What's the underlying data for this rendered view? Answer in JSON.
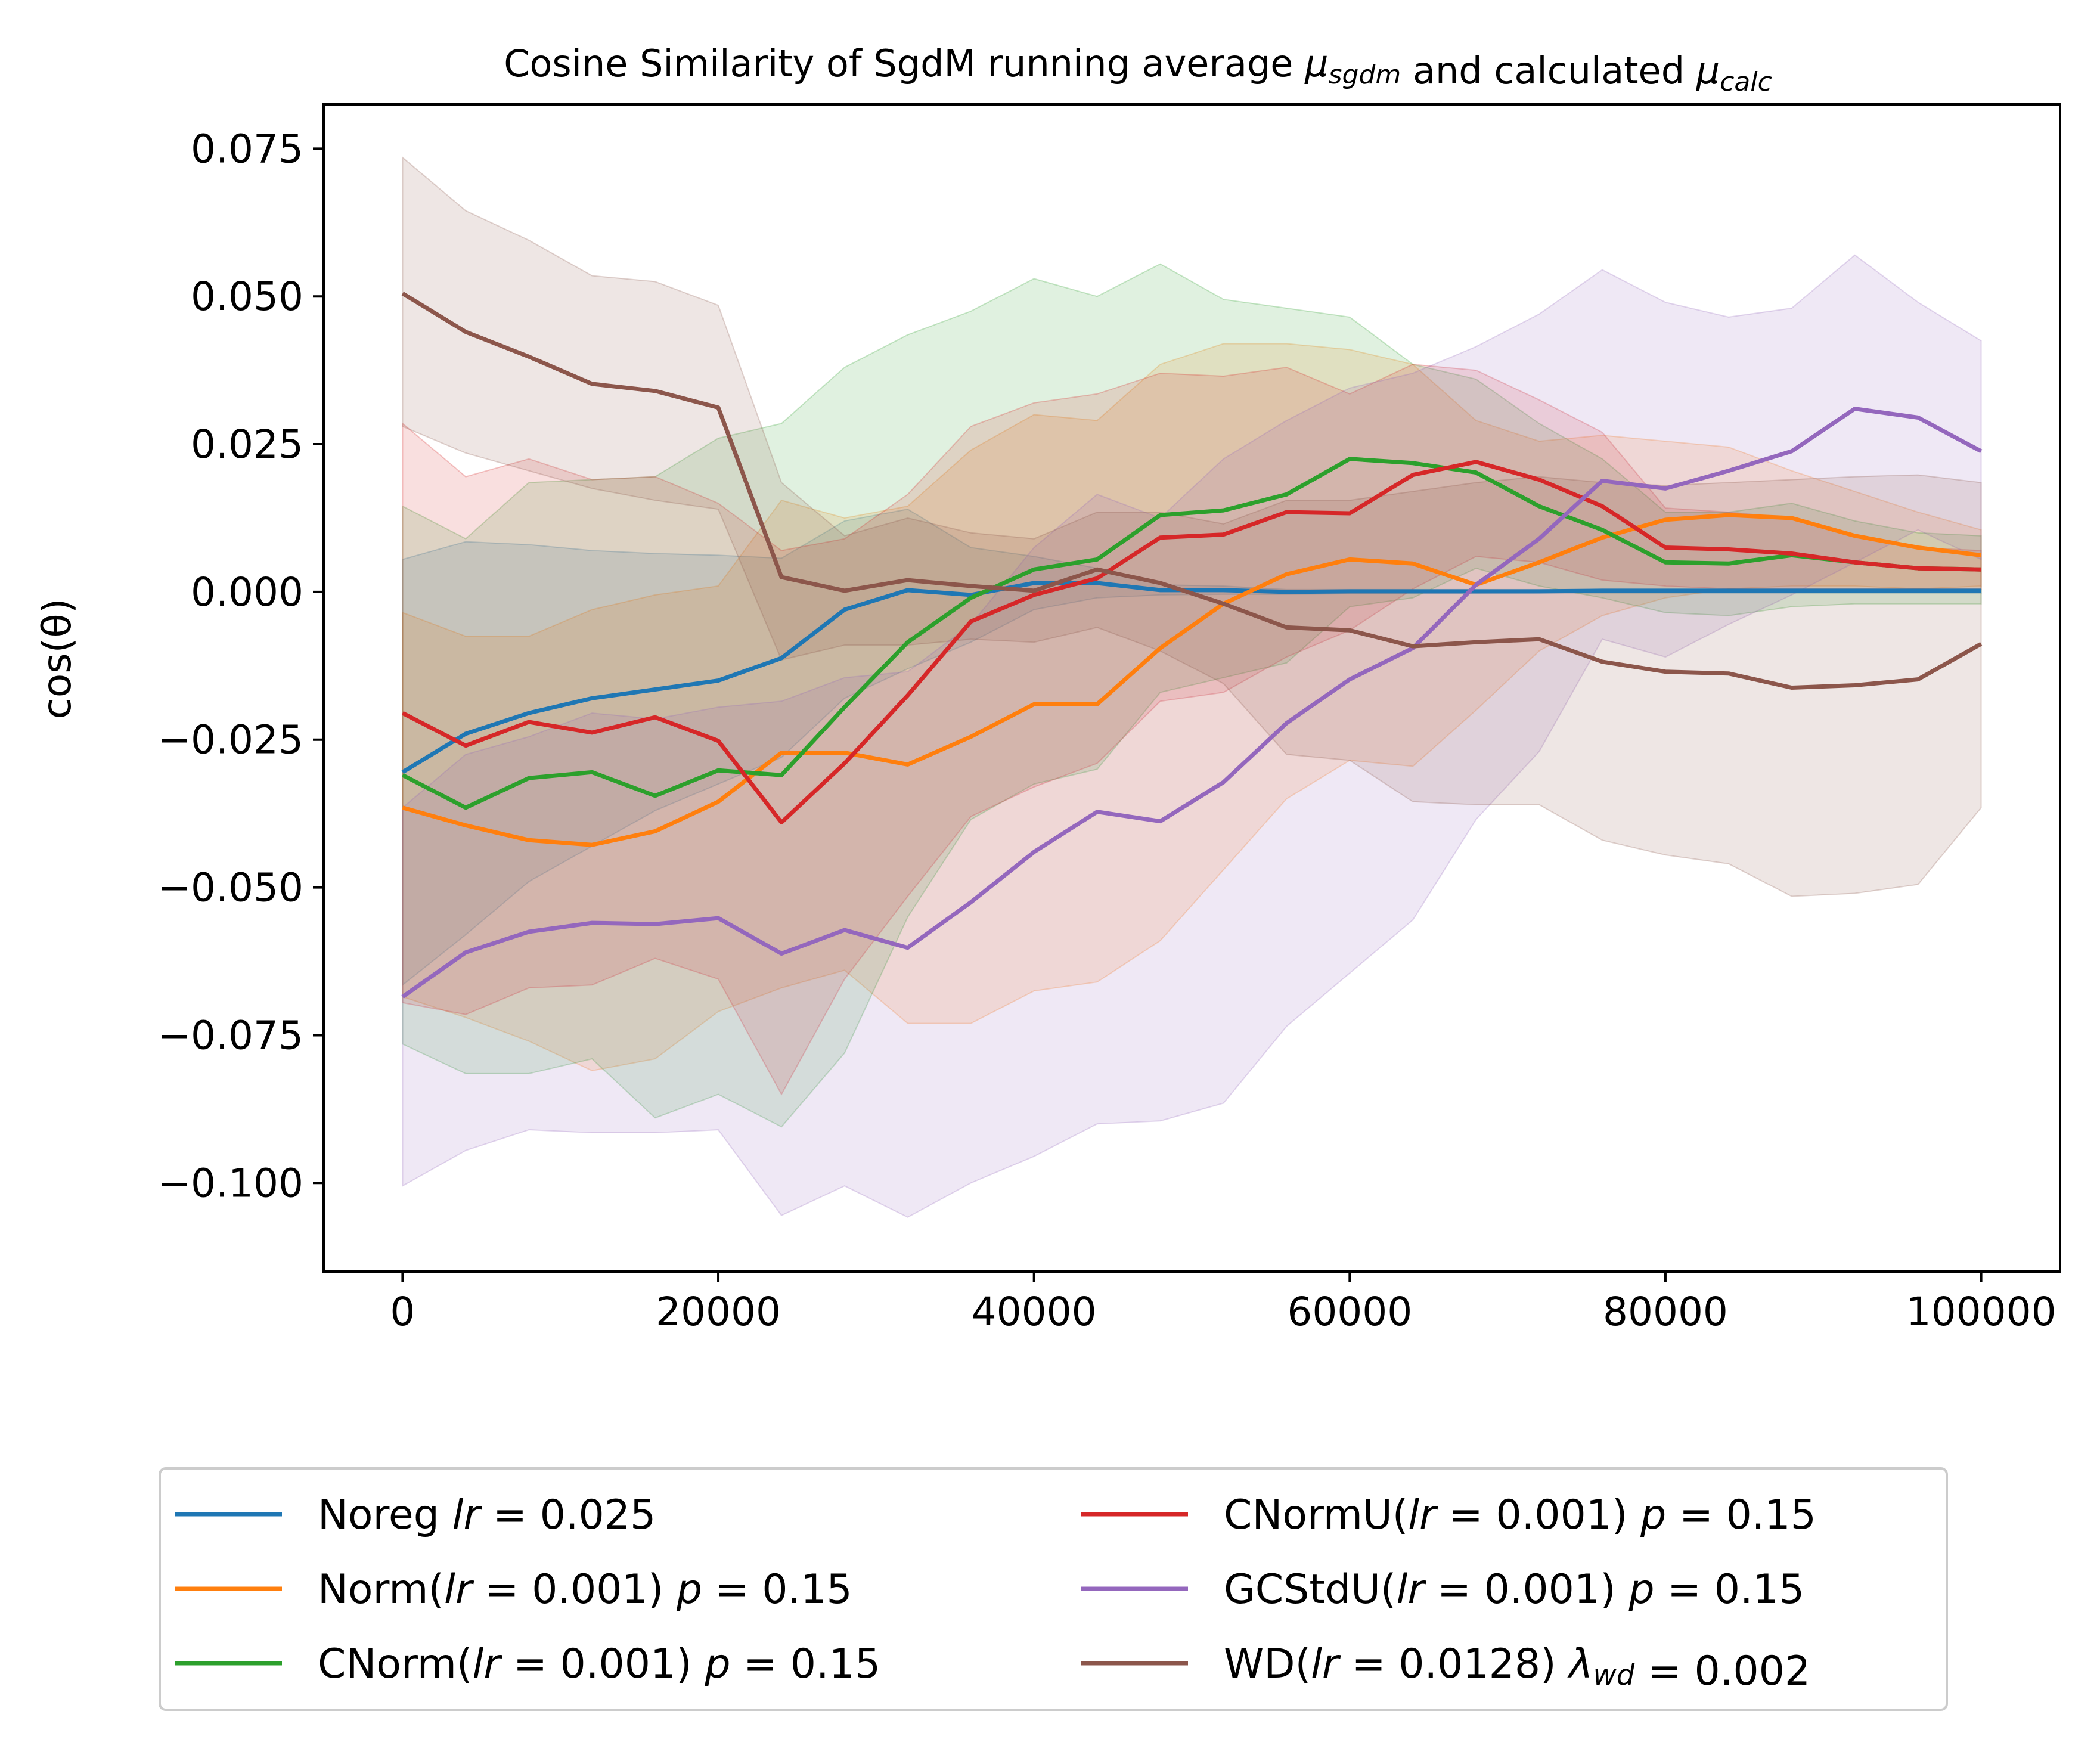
{
  "chart_data": {
    "type": "line",
    "title": "Cosine Similarity of SgdM running average μsgdm and calculated μcalc",
    "title_parts": [
      {
        "text": "Cosine Similarity of SgdM running average ",
        "style": "normal"
      },
      {
        "text": "μ",
        "style": "italic"
      },
      {
        "text": "sgdm",
        "style": "sub"
      },
      {
        "text": " and calculated ",
        "style": "normal"
      },
      {
        "text": "μ",
        "style": "italic"
      },
      {
        "text": "calc",
        "style": "sub"
      }
    ],
    "xlabel": "",
    "ylabel": "cos(θ)",
    "xlim": [
      -5000,
      105000
    ],
    "ylim": [
      -0.115,
      0.0825
    ],
    "xticks": [
      0,
      20000,
      40000,
      60000,
      80000,
      100000
    ],
    "xtick_labels": [
      "0",
      "20000",
      "40000",
      "60000",
      "80000",
      "100000"
    ],
    "yticks": [
      0.075,
      0.05,
      0.025,
      0.0,
      -0.025,
      -0.05,
      -0.075,
      -0.1
    ],
    "ytick_labels": [
      "0.075",
      "0.050",
      "0.025",
      "0.000",
      "−0.025",
      "−0.050",
      "−0.075",
      "−0.100"
    ],
    "grid": false,
    "legend_position": "below",
    "legend_columns": 2,
    "x": [
      0,
      4000,
      8000,
      12000,
      16000,
      20000,
      24000,
      28000,
      32000,
      36000,
      40000,
      44000,
      48000,
      52000,
      56000,
      60000,
      64000,
      68000,
      72000,
      76000,
      80000,
      84000,
      88000,
      92000,
      96000,
      100000
    ],
    "series": [
      {
        "name": "Noreg lr = 0.025",
        "label_parts": [
          {
            "text": "Noreg ",
            "style": "normal"
          },
          {
            "text": "lr",
            "style": "italic"
          },
          {
            "text": " = 0.025",
            "style": "normal"
          }
        ],
        "color": "#1f77b4",
        "values": [
          -0.0305,
          -0.024,
          -0.0205,
          -0.018,
          -0.0165,
          -0.015,
          -0.0112,
          -0.003,
          0.0003,
          -0.0005,
          0.0015,
          0.0015,
          0.0003,
          0.0003,
          0.0,
          0.0001,
          0.0001,
          0.0001,
          0.0001,
          0.0002,
          0.0002,
          0.0002,
          0.0002,
          0.0002,
          0.0002,
          0.0002
        ],
        "lower": [
          -0.0665,
          -0.058,
          -0.049,
          -0.043,
          -0.037,
          -0.0325,
          -0.028,
          -0.018,
          -0.013,
          -0.0085,
          -0.003,
          -0.001,
          -0.0005,
          -0.0004,
          -0.0004,
          -0.0003,
          -0.0003,
          -0.0003,
          -0.0002,
          -0.0002,
          -0.0002,
          -0.0002,
          -0.0002,
          -0.0002,
          -0.0002,
          -0.0002
        ],
        "upper": [
          0.0055,
          0.0085,
          0.008,
          0.007,
          0.0065,
          0.0062,
          0.0057,
          0.012,
          0.014,
          0.0075,
          0.006,
          0.004,
          0.0012,
          0.001,
          0.0004,
          0.0004,
          0.0004,
          0.0004,
          0.0004,
          0.0004,
          0.0004,
          0.0004,
          0.0004,
          0.0004,
          0.0004,
          0.0004
        ]
      },
      {
        "name": "Norm(lr = 0.001) p = 0.15",
        "label_parts": [
          {
            "text": "Norm(",
            "style": "normal"
          },
          {
            "text": "lr",
            "style": "italic"
          },
          {
            "text": " = 0.001) ",
            "style": "normal"
          },
          {
            "text": "p",
            "style": "italic"
          },
          {
            "text": " = 0.15",
            "style": "normal"
          }
        ],
        "color": "#ff7f0e",
        "values": [
          -0.0365,
          -0.0395,
          -0.042,
          -0.0428,
          -0.0405,
          -0.0355,
          -0.0272,
          -0.0272,
          -0.0292,
          -0.0245,
          -0.019,
          -0.019,
          -0.0095,
          -0.002,
          0.003,
          0.0055,
          0.0048,
          0.0012,
          0.005,
          0.0092,
          0.0122,
          0.013,
          0.0125,
          0.0095,
          0.0075,
          0.0062
        ],
        "lower": [
          -0.0685,
          -0.072,
          -0.076,
          -0.081,
          -0.079,
          -0.071,
          -0.067,
          -0.064,
          -0.073,
          -0.073,
          -0.0675,
          -0.066,
          -0.059,
          -0.047,
          -0.035,
          -0.0285,
          -0.0295,
          -0.02,
          -0.01,
          -0.004,
          -0.001,
          0.0005,
          0.001,
          0.001,
          0.0005,
          0.001
        ],
        "upper": [
          -0.0035,
          -0.0075,
          -0.0075,
          -0.003,
          -0.0005,
          0.001,
          0.0155,
          0.0125,
          0.0145,
          0.024,
          0.03,
          0.029,
          0.0385,
          0.042,
          0.042,
          0.041,
          0.0385,
          0.029,
          0.0255,
          0.0265,
          0.0255,
          0.0245,
          0.0205,
          0.017,
          0.0135,
          0.0105
        ]
      },
      {
        "name": "CNorm(lr = 0.001) p = 0.15",
        "label_parts": [
          {
            "text": "CNorm(",
            "style": "normal"
          },
          {
            "text": "lr",
            "style": "italic"
          },
          {
            "text": " = 0.001) ",
            "style": "normal"
          },
          {
            "text": "p",
            "style": "italic"
          },
          {
            "text": " = 0.15",
            "style": "normal"
          }
        ],
        "color": "#2ca02c",
        "values": [
          -0.031,
          -0.0365,
          -0.0315,
          -0.0305,
          -0.0345,
          -0.0302,
          -0.031,
          -0.0195,
          -0.0085,
          -0.001,
          0.0038,
          0.0055,
          0.013,
          0.0138,
          0.0165,
          0.0225,
          0.0218,
          0.0202,
          0.0145,
          0.0105,
          0.005,
          0.0048,
          0.0062,
          0.005,
          0.004,
          0.0038
        ],
        "lower": [
          -0.0765,
          -0.0815,
          -0.0815,
          -0.079,
          -0.089,
          -0.085,
          -0.0905,
          -0.078,
          -0.055,
          -0.0385,
          -0.0325,
          -0.03,
          -0.017,
          -0.0145,
          -0.012,
          -0.0025,
          -0.001,
          0.004,
          0.001,
          -0.001,
          -0.0035,
          -0.004,
          -0.0025,
          -0.002,
          -0.002,
          -0.002
        ],
        "upper": [
          0.0145,
          0.009,
          0.0185,
          0.019,
          0.0195,
          0.026,
          0.0285,
          0.038,
          0.0435,
          0.0475,
          0.053,
          0.05,
          0.0555,
          0.0495,
          0.048,
          0.0465,
          0.0385,
          0.036,
          0.0285,
          0.0225,
          0.0135,
          0.0135,
          0.015,
          0.012,
          0.01,
          0.0095
        ]
      },
      {
        "name": "CNormU(lr = 0.001) p = 0.15",
        "label_parts": [
          {
            "text": "CNormU(",
            "style": "normal"
          },
          {
            "text": "lr",
            "style": "italic"
          },
          {
            "text": " = 0.001) ",
            "style": "normal"
          },
          {
            "text": "p",
            "style": "italic"
          },
          {
            "text": " = 0.15",
            "style": "normal"
          }
        ],
        "color": "#d62728",
        "values": [
          -0.0205,
          -0.026,
          -0.022,
          -0.0238,
          -0.0212,
          -0.0252,
          -0.039,
          -0.029,
          -0.0175,
          -0.005,
          -0.0005,
          0.0023,
          0.0092,
          0.0097,
          0.0135,
          0.0133,
          0.0198,
          0.022,
          0.019,
          0.0145,
          0.0075,
          0.0072,
          0.0065,
          0.005,
          0.004,
          0.0038
        ],
        "lower": [
          -0.0695,
          -0.0715,
          -0.067,
          -0.0665,
          -0.062,
          -0.0655,
          -0.085,
          -0.0655,
          -0.0515,
          -0.038,
          -0.033,
          -0.029,
          -0.0185,
          -0.017,
          -0.011,
          -0.0065,
          0.0005,
          0.006,
          0.005,
          0.002,
          0.001,
          0.0005,
          0.0005,
          0.0005,
          0.0005,
          0.0005
        ],
        "upper": [
          0.0285,
          0.0195,
          0.0225,
          0.019,
          0.0195,
          0.015,
          0.007,
          0.009,
          0.0165,
          0.028,
          0.032,
          0.0335,
          0.037,
          0.0365,
          0.038,
          0.0335,
          0.0385,
          0.0375,
          0.0325,
          0.027,
          0.0142,
          0.0135,
          0.0125,
          0.0095,
          0.0075,
          0.007
        ]
      },
      {
        "name": "GCStdU(lr = 0.001) p = 0.15",
        "label_parts": [
          {
            "text": "GCStdU(",
            "style": "normal"
          },
          {
            "text": "lr",
            "style": "italic"
          },
          {
            "text": " = 0.001) ",
            "style": "normal"
          },
          {
            "text": "p",
            "style": "italic"
          },
          {
            "text": " = 0.15",
            "style": "normal"
          }
        ],
        "color": "#9467bd",
        "values": [
          -0.0685,
          -0.061,
          -0.0575,
          -0.056,
          -0.0562,
          -0.0552,
          -0.0612,
          -0.0572,
          -0.0602,
          -0.0525,
          -0.044,
          -0.0372,
          -0.0388,
          -0.0322,
          -0.0222,
          -0.0148,
          -0.0095,
          0.0012,
          0.009,
          0.0188,
          0.0175,
          0.0205,
          0.0238,
          0.031,
          0.0295,
          0.0238
        ],
        "lower": [
          -0.1005,
          -0.0945,
          -0.091,
          -0.0915,
          -0.0915,
          -0.091,
          -0.1055,
          -0.1005,
          -0.1058,
          -0.1,
          -0.0955,
          -0.09,
          -0.0895,
          -0.0865,
          -0.0735,
          -0.0645,
          -0.0555,
          -0.0385,
          -0.027,
          -0.008,
          -0.011,
          -0.0055,
          -0.0005,
          0.005,
          0.0105,
          0.0055
        ],
        "upper": [
          -0.0365,
          -0.0275,
          -0.0245,
          -0.0205,
          -0.0215,
          -0.0195,
          -0.0185,
          -0.0145,
          -0.0135,
          -0.0055,
          0.0075,
          0.0165,
          0.0125,
          0.0225,
          0.029,
          0.0345,
          0.037,
          0.0415,
          0.047,
          0.0545,
          0.049,
          0.0465,
          0.048,
          0.057,
          0.049,
          0.0425
        ]
      },
      {
        "name": "WD(lr = 0.0128) λwd = 0.002",
        "label_parts": [
          {
            "text": "WD(",
            "style": "normal"
          },
          {
            "text": "lr",
            "style": "italic"
          },
          {
            "text": " = 0.0128) ",
            "style": "normal"
          },
          {
            "text": "λ",
            "style": "italic"
          },
          {
            "text": "wd",
            "style": "sub"
          },
          {
            "text": " = 0.002",
            "style": "normal"
          }
        ],
        "color": "#8c564b",
        "values": [
          0.0505,
          0.044,
          0.0398,
          0.0352,
          0.034,
          0.0312,
          0.0025,
          0.0002,
          0.002,
          0.001,
          0.0002,
          0.0038,
          0.0015,
          -0.002,
          -0.006,
          -0.0065,
          -0.0092,
          -0.0085,
          -0.008,
          -0.0118,
          -0.0135,
          -0.0138,
          -0.0162,
          -0.0158,
          -0.0148,
          -0.0088
        ],
        "lower": [
          0.028,
          0.0235,
          0.0205,
          0.0175,
          0.0155,
          0.014,
          -0.0115,
          -0.009,
          -0.009,
          -0.008,
          -0.0085,
          -0.006,
          -0.01,
          -0.0155,
          -0.0275,
          -0.0285,
          -0.0355,
          -0.036,
          -0.036,
          -0.042,
          -0.0445,
          -0.046,
          -0.0515,
          -0.051,
          -0.0495,
          -0.0365
        ],
        "upper": [
          0.0735,
          0.0645,
          0.0595,
          0.0535,
          0.0525,
          0.0485,
          0.0185,
          0.0095,
          0.0125,
          0.01,
          0.009,
          0.0135,
          0.0135,
          0.0115,
          0.0155,
          0.0155,
          0.017,
          0.0185,
          0.0195,
          0.0185,
          0.018,
          0.0185,
          0.019,
          0.0195,
          0.0198,
          0.0185
        ]
      }
    ]
  }
}
